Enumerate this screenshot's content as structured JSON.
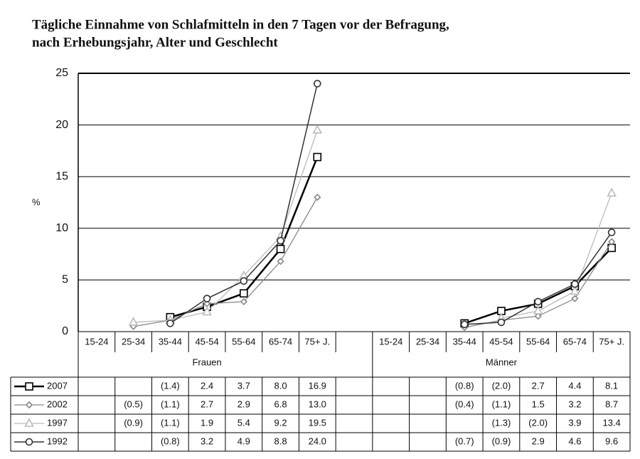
{
  "chart_data": {
    "type": "line",
    "title": [
      "Tägliche Einnahme von Schlafmitteln in den 7 Tagen vor der Befragung,",
      "nach Erhebungsjahr, Alter und Geschlecht"
    ],
    "ylabel": "%",
    "ylim": [
      0,
      25
    ],
    "yticks": [
      0,
      5,
      10,
      15,
      20,
      25
    ],
    "grid": true,
    "groups": [
      "Frauen",
      "Männer"
    ],
    "categories": [
      "15-24",
      "25-34",
      "35-44",
      "45-54",
      "55-64",
      "65-74",
      "75+ J.",
      "15-24",
      "25-34",
      "35-44",
      "45-54",
      "55-64",
      "65-74",
      "75+ J."
    ],
    "series": [
      {
        "name": "2007",
        "color": "#000000",
        "marker": "square",
        "width": 2.5,
        "values": [
          null,
          null,
          1.4,
          2.4,
          3.7,
          8.0,
          16.9,
          null,
          null,
          0.8,
          2.0,
          2.7,
          4.4,
          8.1
        ],
        "value_labels": [
          null,
          null,
          "(1.4)",
          "2.4",
          "3.7",
          "8.0",
          "16.9",
          null,
          null,
          "(0.8)",
          "(2.0)",
          "2.7",
          "4.4",
          "8.1"
        ]
      },
      {
        "name": "2002",
        "color": "#888888",
        "marker": "diamond",
        "width": 1.3,
        "values": [
          null,
          0.5,
          1.1,
          2.7,
          2.9,
          6.8,
          13.0,
          null,
          null,
          0.4,
          1.1,
          1.5,
          3.2,
          8.7
        ],
        "value_labels": [
          null,
          "(0.5)",
          "(1.1)",
          "2.7",
          "2.9",
          "6.8",
          "13.0",
          null,
          null,
          "(0.4)",
          "(1.1)",
          "1.5",
          "3.2",
          "8.7"
        ]
      },
      {
        "name": "1997",
        "color": "#bbbbbb",
        "marker": "triangle",
        "width": 1.3,
        "values": [
          null,
          0.9,
          1.1,
          1.9,
          5.4,
          9.2,
          19.5,
          null,
          null,
          null,
          1.3,
          2.0,
          3.9,
          13.4
        ],
        "value_labels": [
          null,
          "(0.9)",
          "(1.1)",
          "1.9",
          "5.4",
          "9.2",
          "19.5",
          null,
          null,
          null,
          "(1.3)",
          "(2.0)",
          "3.9",
          "13.4"
        ]
      },
      {
        "name": "1992",
        "color": "#333333",
        "marker": "circle",
        "width": 1.5,
        "values": [
          null,
          null,
          0.8,
          3.2,
          4.9,
          8.8,
          24.0,
          null,
          null,
          0.7,
          0.9,
          2.9,
          4.6,
          9.6
        ],
        "value_labels": [
          null,
          null,
          "(0.8)",
          "3.2",
          "4.9",
          "8.8",
          "24.0",
          null,
          null,
          "(0.7)",
          "(0.9)",
          "2.9",
          "4.6",
          "9.6"
        ]
      }
    ]
  }
}
